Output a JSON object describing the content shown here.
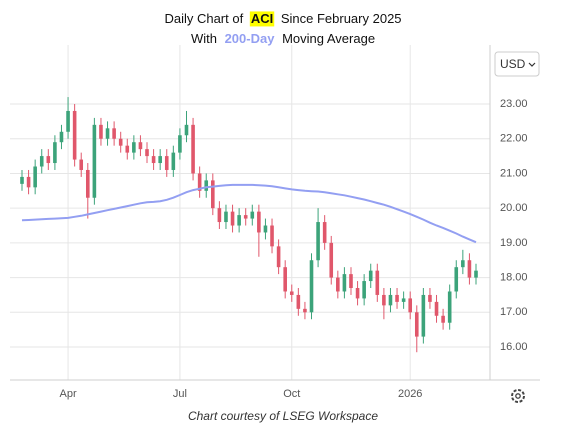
{
  "chart_data": {
    "type": "candlestick",
    "title": {
      "line1": [
        "Daily Chart of",
        "ACI",
        "Since February 2025"
      ],
      "line2": [
        "With",
        "200-Day",
        "Moving Average"
      ]
    },
    "currency": "USD",
    "footer": "Chart courtesy of LSEG Workspace",
    "categories": [
      null,
      null,
      null,
      null,
      null,
      null,
      null,
      "Apr",
      null,
      null,
      null,
      null,
      null,
      null,
      null,
      null,
      null,
      null,
      null,
      null,
      null,
      null,
      null,
      null,
      "Jul",
      null,
      null,
      null,
      null,
      null,
      null,
      null,
      null,
      null,
      null,
      null,
      null,
      null,
      null,
      null,
      null,
      "Oct",
      null,
      null,
      null,
      null,
      null,
      null,
      null,
      null,
      null,
      null,
      null,
      null,
      null,
      null,
      null,
      null,
      null,
      "2026",
      null,
      null,
      null,
      null,
      null,
      null,
      null,
      null,
      null,
      null
    ],
    "open": [
      20.7,
      20.9,
      20.6,
      21.2,
      21.5,
      21.3,
      21.9,
      22.2,
      22.8,
      21.4,
      21.1,
      20.3,
      22.4,
      22.0,
      22.3,
      22.0,
      21.8,
      21.6,
      21.9,
      21.7,
      21.5,
      21.3,
      21.5,
      21.1,
      21.6,
      22.1,
      22.4,
      21.0,
      20.5,
      20.8,
      20.0,
      19.6,
      19.9,
      19.5,
      19.8,
      19.7,
      19.9,
      19.3,
      19.5,
      18.9,
      18.3,
      17.6,
      17.5,
      17.1,
      17.0,
      18.5,
      19.6,
      19.0,
      18.0,
      17.6,
      18.1,
      17.7,
      17.4,
      17.9,
      18.2,
      17.5,
      17.2,
      17.5,
      17.3,
      17.4,
      17.0,
      16.3,
      17.5,
      17.3,
      16.9,
      16.7,
      17.6,
      18.3,
      18.5,
      18.0
    ],
    "high": [
      21.1,
      21.1,
      21.4,
      21.7,
      21.7,
      22.1,
      22.4,
      23.2,
      23.0,
      21.6,
      21.3,
      22.6,
      22.6,
      22.5,
      22.5,
      22.2,
      22.0,
      22.1,
      22.1,
      21.9,
      21.7,
      21.7,
      21.7,
      21.8,
      22.3,
      22.8,
      22.6,
      21.2,
      21.0,
      21.0,
      20.2,
      20.1,
      20.1,
      20.0,
      20.0,
      20.1,
      20.1,
      19.7,
      19.7,
      19.1,
      18.5,
      17.8,
      17.7,
      17.3,
      18.7,
      20.0,
      19.8,
      19.2,
      18.2,
      18.3,
      18.3,
      17.9,
      18.1,
      18.4,
      18.4,
      17.7,
      17.7,
      17.7,
      17.6,
      17.6,
      17.2,
      17.7,
      17.7,
      17.5,
      17.1,
      17.8,
      18.5,
      18.8,
      18.7,
      18.4
    ],
    "low": [
      20.5,
      20.4,
      20.4,
      21.0,
      21.1,
      21.1,
      21.7,
      22.0,
      21.2,
      20.9,
      19.7,
      20.1,
      21.8,
      21.8,
      21.8,
      21.6,
      21.4,
      21.4,
      21.5,
      21.3,
      21.1,
      21.1,
      20.9,
      20.9,
      21.4,
      21.9,
      20.8,
      20.3,
      20.3,
      19.8,
      19.4,
      19.4,
      19.3,
      19.3,
      19.5,
      19.5,
      18.6,
      19.1,
      18.7,
      18.1,
      17.4,
      17.3,
      16.9,
      16.8,
      16.8,
      18.3,
      18.8,
      17.8,
      17.4,
      17.4,
      17.5,
      17.2,
      17.2,
      17.7,
      17.3,
      16.8,
      17.0,
      17.1,
      17.1,
      16.8,
      15.85,
      16.1,
      17.1,
      16.7,
      16.5,
      16.5,
      17.4,
      18.1,
      17.8,
      17.8
    ],
    "close": [
      20.9,
      20.6,
      21.2,
      21.5,
      21.3,
      21.9,
      22.2,
      22.8,
      21.4,
      21.1,
      20.3,
      22.4,
      22.0,
      22.3,
      22.0,
      21.8,
      21.6,
      21.9,
      21.7,
      21.5,
      21.3,
      21.5,
      21.1,
      21.6,
      22.1,
      22.4,
      21.0,
      20.5,
      20.8,
      20.0,
      19.6,
      19.9,
      19.5,
      19.8,
      19.7,
      19.9,
      19.3,
      19.5,
      18.9,
      18.3,
      17.6,
      17.5,
      17.1,
      17.0,
      18.5,
      19.6,
      19.0,
      18.0,
      17.6,
      18.1,
      17.7,
      17.4,
      17.9,
      18.2,
      17.5,
      17.2,
      17.5,
      17.3,
      17.4,
      17.0,
      16.3,
      17.5,
      17.3,
      16.9,
      16.7,
      17.6,
      18.3,
      18.5,
      18.0,
      18.2
    ],
    "up_color": "#3ca37a",
    "down_color": "#e0576b",
    "moving_average": {
      "color": "#939ff2",
      "values": [
        19.65,
        19.66,
        19.67,
        19.68,
        19.69,
        19.7,
        19.71,
        19.72,
        19.75,
        19.78,
        19.82,
        19.86,
        19.9,
        19.94,
        19.98,
        20.02,
        20.06,
        20.1,
        20.14,
        20.17,
        20.18,
        20.2,
        20.24,
        20.3,
        20.38,
        20.46,
        20.52,
        20.56,
        20.6,
        20.62,
        20.64,
        20.66,
        20.67,
        20.67,
        20.67,
        20.67,
        20.66,
        20.65,
        20.63,
        20.6,
        20.57,
        20.54,
        20.52,
        20.5,
        20.49,
        20.48,
        20.46,
        20.43,
        20.4,
        20.37,
        20.33,
        20.29,
        20.25,
        20.2,
        20.15,
        20.1,
        20.04,
        19.97,
        19.9,
        19.83,
        19.75,
        19.67,
        19.58,
        19.5,
        19.43,
        19.35,
        19.27,
        19.18,
        19.1,
        19.02
      ]
    },
    "ylim": [
      15.05,
      24.7
    ],
    "yticks": [
      {
        "value": 16,
        "label": "16.00"
      },
      {
        "value": 17,
        "label": "17.00"
      },
      {
        "value": 18,
        "label": "18.00"
      },
      {
        "value": 19,
        "label": "19.00"
      },
      {
        "value": 20,
        "label": "20.00"
      },
      {
        "value": 21,
        "label": "21.00"
      },
      {
        "value": 22,
        "label": "22.00"
      },
      {
        "value": 23,
        "label": "23.00"
      }
    ],
    "grid": true
  }
}
